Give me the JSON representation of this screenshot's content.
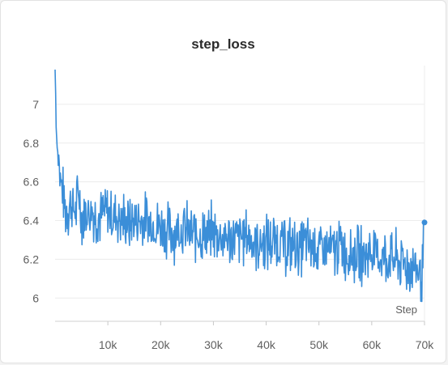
{
  "chart_data": {
    "type": "line",
    "title": "step_loss",
    "xlabel": "Step",
    "ylabel": "",
    "xlim": [
      0,
      70000
    ],
    "ylim": [
      5.88,
      7.2
    ],
    "x_ticks": [
      10000,
      20000,
      30000,
      40000,
      50000,
      60000,
      70000
    ],
    "x_tick_labels": [
      "10k",
      "20k",
      "30k",
      "40k",
      "50k",
      "60k",
      "70k"
    ],
    "y_ticks": [
      6,
      6.2,
      6.4,
      6.6,
      6.8,
      7
    ],
    "y_tick_labels": [
      "6",
      "6.2",
      "6.4",
      "6.6",
      "6.8",
      "7"
    ],
    "grid": true,
    "line_color": "#3b8ed8",
    "last_point": [
      70000,
      6.39
    ],
    "noise_amplitude": 0.12,
    "series": [
      {
        "x": [
          0,
          200,
          400,
          700,
          1000,
          1500,
          2000,
          3000,
          4000,
          4500,
          5000,
          6000,
          7000,
          8000,
          9000,
          10000,
          12000,
          14000,
          16000,
          18000,
          20000,
          22000,
          24000,
          26000,
          28000,
          30000,
          32000,
          34000,
          36000,
          38000,
          40000,
          42000,
          44000,
          46000,
          48000,
          50000,
          52000,
          54000,
          56000,
          58000,
          60000,
          62000,
          64000,
          66000,
          68000,
          69500,
          70000
        ],
        "y": [
          7.18,
          6.92,
          6.78,
          6.7,
          6.62,
          6.52,
          6.46,
          6.48,
          6.45,
          6.55,
          6.42,
          6.44,
          6.45,
          6.42,
          6.43,
          6.44,
          6.42,
          6.38,
          6.4,
          6.39,
          6.37,
          6.34,
          6.36,
          6.33,
          6.32,
          6.34,
          6.31,
          6.3,
          6.32,
          6.29,
          6.28,
          6.3,
          6.27,
          6.26,
          6.28,
          6.25,
          6.24,
          6.26,
          6.23,
          6.22,
          6.24,
          6.21,
          6.2,
          6.18,
          6.16,
          6.12,
          6.39
        ]
      }
    ]
  }
}
